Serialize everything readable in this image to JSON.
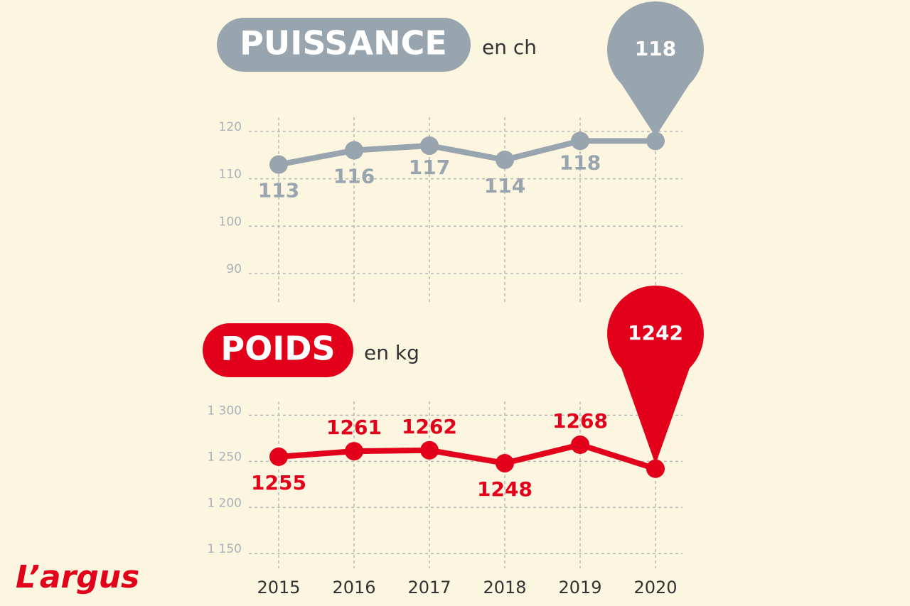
{
  "chart_data": [
    {
      "type": "line",
      "title": "PUISSANCE",
      "subtitle": "en ch",
      "color": "#98a4ae",
      "values": [
        113,
        116,
        117,
        114,
        118,
        118
      ],
      "ylim": [
        84,
        123
      ],
      "yticks": [
        90,
        100,
        110,
        120
      ],
      "grid": true
    },
    {
      "type": "line",
      "title": "POIDS",
      "subtitle": "en kg",
      "color": "#e2001a",
      "categories": [
        "2015",
        "2016",
        "2017",
        "2018",
        "2019",
        "2020"
      ],
      "values": [
        1255,
        1261,
        1262,
        1248,
        1268,
        1242
      ],
      "ylim": [
        1134,
        1315
      ],
      "yticks": [
        {
          "value": 1150,
          "label": "1 150"
        },
        {
          "value": 1200,
          "label": "1 200"
        },
        {
          "value": 1250,
          "label": "1 250"
        },
        {
          "value": 1300,
          "label": "1 300"
        }
      ],
      "grid": true
    }
  ],
  "logo": "L’argus"
}
